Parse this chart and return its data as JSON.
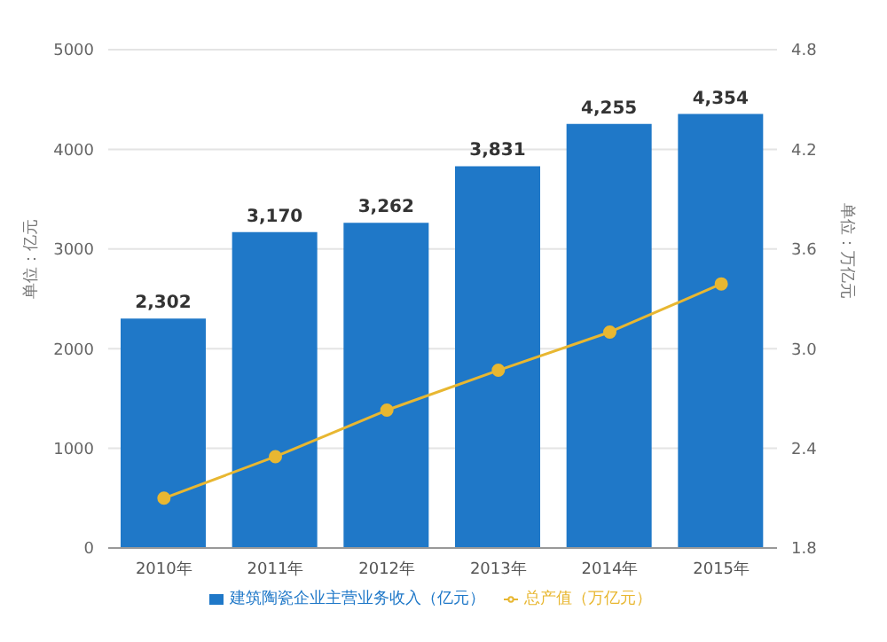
{
  "chart_data": {
    "type": "bar",
    "categories": [
      "2010年",
      "2011年",
      "2012年",
      "2013年",
      "2014年",
      "2015年"
    ],
    "ylabel": "单位：亿元",
    "y2label": "单位：万亿元",
    "series": [
      {
        "name": "建筑陶瓷企业主营业务收入（亿元）",
        "color": "#1f78c8",
        "values": [
          2302,
          3170,
          3262,
          3831,
          4255,
          4354
        ],
        "value_labels": [
          "2,302",
          "3,170",
          "3,262",
          "3,831",
          "4,255",
          "4,354"
        ]
      },
      {
        "name": "总产值（万亿元）",
        "type": "line",
        "axis": "y2",
        "color": "#e8b731",
        "values": [
          2.1,
          2.35,
          2.63,
          2.87,
          3.1,
          3.39
        ]
      }
    ],
    "ylim": [
      0,
      5000
    ],
    "yticks": [
      0,
      1000,
      2000,
      3000,
      4000,
      5000
    ],
    "y2lim": [
      1.8,
      4.8
    ],
    "y2ticks": [
      1.8,
      2.4,
      {
        "value": 3,
        "label": "3.0"
      },
      3.6,
      4.2,
      4.8
    ],
    "grid": "y",
    "legend": "bottom",
    "marker": "circle"
  }
}
